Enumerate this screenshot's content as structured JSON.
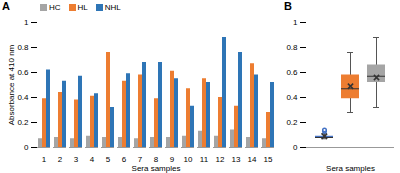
{
  "chart_data": [
    {
      "type": "bar",
      "title": "A",
      "xlabel": "Sera samples",
      "ylabel": "Absorbance at 410 nm",
      "categories": [
        "1",
        "2",
        "3",
        "4",
        "5",
        "6",
        "7",
        "8",
        "9",
        "10",
        "11",
        "12",
        "13",
        "14",
        "15"
      ],
      "series": [
        {
          "name": "HC",
          "color": "#a5a5a5",
          "values": [
            0.07,
            0.08,
            0.07,
            0.09,
            0.08,
            0.08,
            0.07,
            0.08,
            0.08,
            0.09,
            0.13,
            0.09,
            0.14,
            0.08,
            0.07
          ]
        },
        {
          "name": "HL",
          "color": "#ed7d31",
          "values": [
            0.39,
            0.44,
            0.38,
            0.41,
            0.76,
            0.53,
            0.58,
            0.39,
            0.61,
            0.47,
            0.55,
            0.4,
            0.33,
            0.67,
            0.28
          ]
        },
        {
          "name": "NHL",
          "color": "#2e75b6",
          "values": [
            0.62,
            0.53,
            0.57,
            0.43,
            0.32,
            0.59,
            0.68,
            0.68,
            0.55,
            0.33,
            0.52,
            0.88,
            0.76,
            0.58,
            0.52
          ]
        }
      ],
      "ylim": [
        0,
        1
      ],
      "yticks": [
        0,
        0.2,
        0.4,
        0.6,
        0.8,
        1
      ],
      "grid": false,
      "legend": "top"
    },
    {
      "type": "box",
      "title": "B",
      "xlabel": "Sera samples",
      "categories": [
        null,
        null,
        null
      ],
      "colors": [
        "#4472c4",
        "#ed7d31",
        "#a5a5a5"
      ],
      "stats": [
        {
          "min": 0.07,
          "q1": 0.075,
          "median": 0.08,
          "q3": 0.09,
          "max": 0.11,
          "mean": 0.09,
          "outliers": [
            0.13,
            0.14
          ]
        },
        {
          "min": 0.28,
          "q1": 0.39,
          "median": 0.47,
          "q3": 0.58,
          "max": 0.76,
          "mean": 0.49,
          "outliers": []
        },
        {
          "min": 0.32,
          "q1": 0.52,
          "median": 0.57,
          "q3": 0.66,
          "max": 0.88,
          "mean": 0.56,
          "outliers": []
        }
      ],
      "ylim": [
        0,
        1
      ],
      "yticks": [
        0,
        0.2,
        0.4,
        0.6,
        0.8,
        1
      ],
      "grid": false
    }
  ]
}
